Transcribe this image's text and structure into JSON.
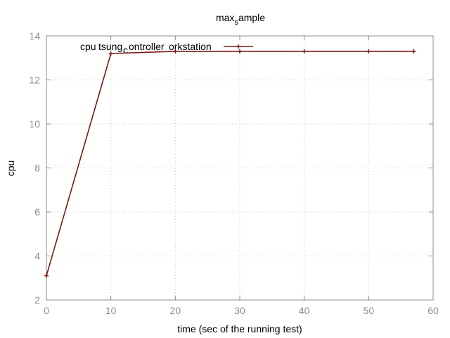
{
  "chart_data": {
    "type": "line",
    "title": {
      "main": "max",
      "subscript": "s",
      "rest": "ample"
    },
    "xlabel": "time (sec of the running test)",
    "ylabel": "cpu",
    "xlim": [
      0,
      60
    ],
    "ylim": [
      2,
      14
    ],
    "x_ticks": [
      0,
      10,
      20,
      30,
      40,
      50,
      60
    ],
    "y_ticks": [
      2,
      4,
      6,
      8,
      10,
      12,
      14
    ],
    "grid": true,
    "legend_position": "top-left",
    "series": [
      {
        "legend": {
          "part1": "cpu",
          "part2": "tsung",
          "subscript": "c",
          "part3": "ontroller",
          "part4": "orkstation"
        },
        "color": "#7a1a10",
        "x": [
          0,
          10,
          20,
          30,
          40,
          50,
          57
        ],
        "y": [
          3.1,
          13.2,
          13.3,
          13.3,
          13.3,
          13.3,
          13.3
        ]
      }
    ]
  }
}
